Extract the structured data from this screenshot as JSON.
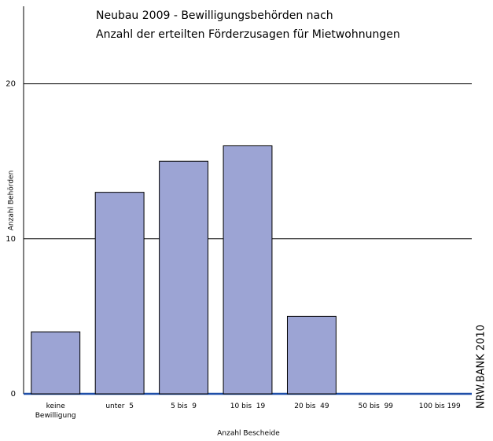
{
  "chart_data": {
    "type": "bar",
    "title": [
      "Neubau 2009 - Bewilligungsbehörden nach",
      "Anzahl der erteilten Förderzusagen für Mietwohnungen"
    ],
    "categories": [
      "keine Bewilligung",
      "unter  5",
      "5 bis  9",
      "10 bis  19",
      "20 bis  49",
      "50 bis  99",
      "100 bis 199"
    ],
    "values": [
      4,
      13,
      15,
      16,
      5,
      0,
      0
    ],
    "color": "#9ca4d4",
    "ylim": [
      0,
      25
    ],
    "yticks": [
      0,
      10,
      20
    ],
    "grid": true,
    "x_label": "Anzahl Bescheide",
    "y_label": "Anzahl Behörden",
    "source": "NRW.BANK 2010"
  }
}
